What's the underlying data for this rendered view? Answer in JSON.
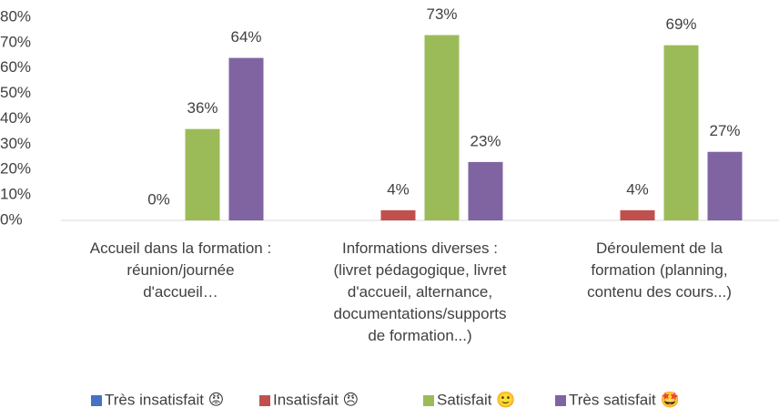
{
  "chart_data": {
    "type": "bar",
    "categories": [
      "Accueil dans la formation :\nréunion/journée\nd'accueil…",
      "Informations diverses :\n(livret pédagogique, livret\nd'accueil, alternance,\ndocumentations/supports\nde formation...)",
      "Déroulement de la\nformation (planning,\ncontenu des cours...)"
    ],
    "series": [
      {
        "name": "Très insatisfait 😡",
        "color": "#4472c4",
        "values": [
          0,
          0,
          0
        ]
      },
      {
        "name": "Insatisfait 😠",
        "color": "#c0504d",
        "values": [
          0,
          4,
          4
        ],
        "value_labels": [
          "0%",
          "4%",
          "4%"
        ]
      },
      {
        "name": "Satisfait 🙂",
        "color": "#9bbb59",
        "values": [
          36,
          73,
          69
        ],
        "value_labels": [
          "36%",
          "73%",
          "69%"
        ]
      },
      {
        "name": "Très satisfait 🤩",
        "color": "#8064a2",
        "values": [
          64,
          23,
          27
        ],
        "value_labels": [
          "64%",
          "23%",
          "27%"
        ]
      }
    ],
    "ylim": [
      0,
      80
    ],
    "yticks": [
      {
        "value": 0,
        "label": "0%"
      },
      {
        "value": 10,
        "label": "10%"
      },
      {
        "value": 20,
        "label": "20%"
      },
      {
        "value": 30,
        "label": "30%"
      },
      {
        "value": 40,
        "label": "40%"
      },
      {
        "value": 50,
        "label": "50%"
      },
      {
        "value": 60,
        "label": "60%"
      },
      {
        "value": 70,
        "label": "70%"
      },
      {
        "value": 80,
        "label": "80%"
      }
    ],
    "legend": "bottom"
  }
}
